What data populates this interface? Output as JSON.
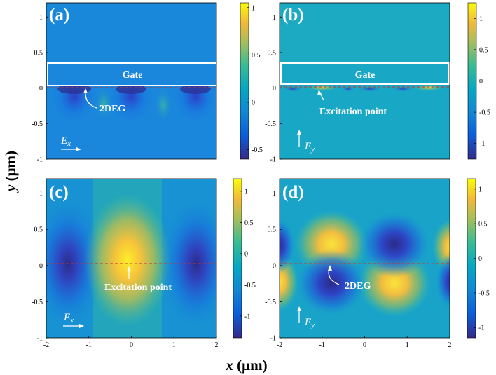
{
  "figure": {
    "xlabel_var": "x",
    "xlabel_unit": " (μm)",
    "ylabel_var": "y",
    "ylabel_unit": " (μm)"
  },
  "chart_data": [
    {
      "type": "heatmap",
      "panel_label": "(a)",
      "field_component": "E",
      "field_subscript": "x",
      "xlim": [
        -2,
        2
      ],
      "ylim": [
        -1,
        1.2
      ],
      "xticks": [],
      "yticks": [
        -1,
        -0.5,
        0,
        0.5,
        1
      ],
      "colorbar_ticks": [
        -0.5,
        0,
        0.5,
        1
      ],
      "colorbar_range": [
        -0.6,
        1.05
      ],
      "gate_label": "Gate",
      "annotation": "2DEG",
      "dashed_line_y": 0
    },
    {
      "type": "heatmap",
      "panel_label": "(b)",
      "field_component": "E",
      "field_subscript": "y",
      "xlim": [
        -2,
        2
      ],
      "ylim": [
        -1,
        1.2
      ],
      "xticks": [],
      "yticks": [
        -1,
        -0.5,
        0,
        0.5,
        1
      ],
      "colorbar_ticks": [
        -1,
        -0.5,
        0,
        0.5,
        1
      ],
      "colorbar_range": [
        -1.25,
        1.25
      ],
      "gate_label": "Gate",
      "annotation": "Excitation point",
      "dashed_line_y": 0
    },
    {
      "type": "heatmap",
      "panel_label": "(c)",
      "field_component": "E",
      "field_subscript": "x",
      "xlim": [
        -2,
        2
      ],
      "ylim": [
        -1,
        1.2
      ],
      "xticks": [
        -2,
        -1,
        0,
        1,
        2
      ],
      "yticks": [
        -1,
        -0.5,
        0,
        0.5,
        1
      ],
      "colorbar_ticks": [
        -1,
        -0.5,
        0,
        0.5,
        1
      ],
      "colorbar_range": [
        -1.35,
        1.2
      ],
      "annotation": "Excitation point",
      "dashed_line_y": 0
    },
    {
      "type": "heatmap",
      "panel_label": "(d)",
      "field_component": "E",
      "field_subscript": "y",
      "xlim": [
        -2,
        2
      ],
      "ylim": [
        -1,
        1.2
      ],
      "xticks": [
        -2,
        -1,
        0,
        1,
        2
      ],
      "yticks": [
        -1,
        -0.5,
        0,
        0.5,
        1
      ],
      "colorbar_ticks": [
        -1,
        -0.5,
        0,
        0.5,
        1
      ],
      "colorbar_range": [
        -1.15,
        1.15
      ],
      "annotation": "2DEG",
      "dashed_line_y": 0
    }
  ]
}
